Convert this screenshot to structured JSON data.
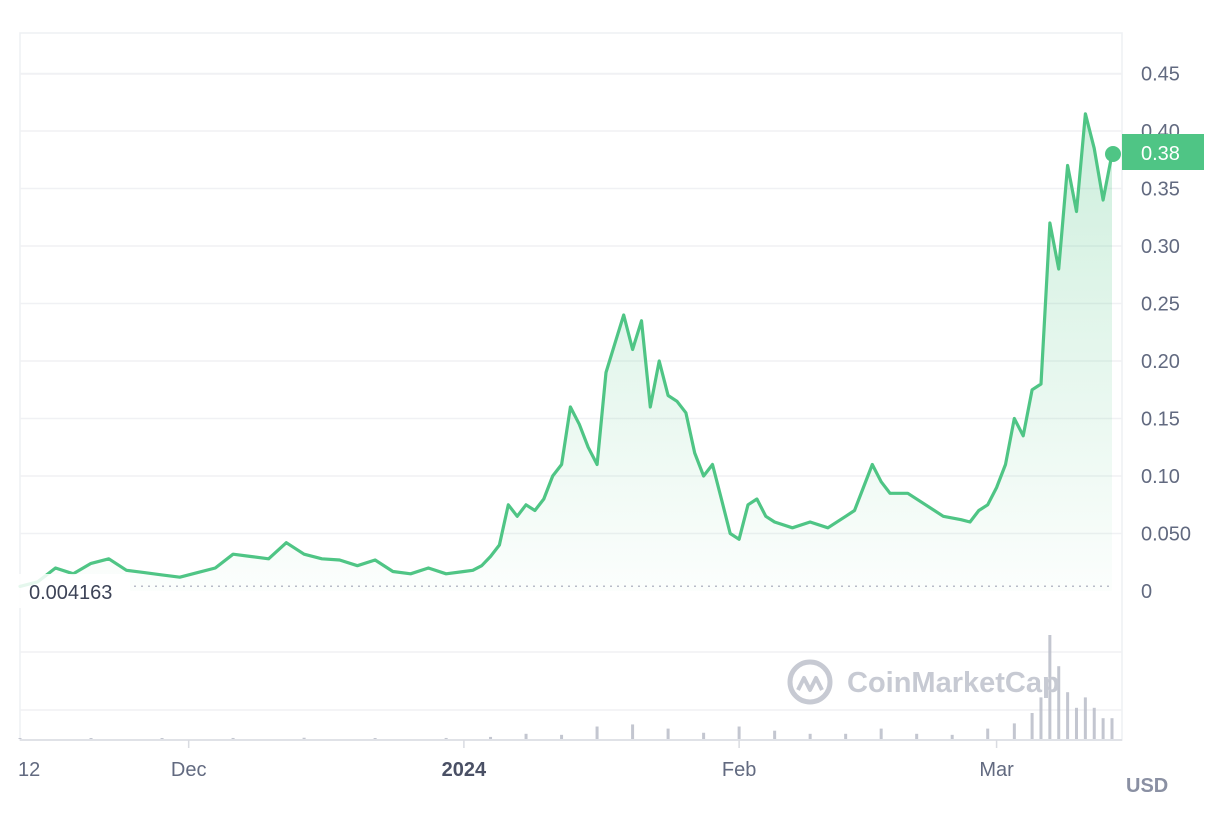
{
  "chart_data": {
    "type": "area",
    "currency": "USD",
    "y_ticks": [
      "0.45",
      "0.40",
      "0.35",
      "0.30",
      "0.25",
      "0.20",
      "0.15",
      "0.10",
      "0.050",
      "0"
    ],
    "y_tick_values": [
      0.45,
      0.4,
      0.35,
      0.3,
      0.25,
      0.2,
      0.15,
      0.1,
      0.05,
      0
    ],
    "ylim": [
      0,
      0.45
    ],
    "x_ticks": [
      {
        "label": "12",
        "date": "2023-11-12",
        "bold": false
      },
      {
        "label": "Dec",
        "date": "2023-12-01",
        "bold": false
      },
      {
        "label": "2024",
        "date": "2024-01-01",
        "bold": true
      },
      {
        "label": "Feb",
        "date": "2024-02-01",
        "bold": false
      },
      {
        "label": "Mar",
        "date": "2024-03-01",
        "bold": false
      }
    ],
    "xlim": [
      "2023-11-12",
      "2024-03-14"
    ],
    "base_price_label": "0.004163",
    "base_price": 0.004163,
    "current_price_label": "0.38",
    "current_price": 0.38,
    "line_color": "#4fc585",
    "volume_color": "#b8bcc8",
    "watermark": "CoinMarketCap",
    "series": [
      {
        "x": [
          "2023-11-12",
          "2023-11-14",
          "2023-11-16",
          "2023-11-18",
          "2023-11-20",
          "2023-11-22",
          "2023-11-24",
          "2023-11-26",
          "2023-11-28",
          "2023-11-30",
          "2023-12-02",
          "2023-12-04",
          "2023-12-06",
          "2023-12-08",
          "2023-12-10",
          "2023-12-12",
          "2023-12-14",
          "2023-12-16",
          "2023-12-18",
          "2023-12-20",
          "2023-12-22",
          "2023-12-24",
          "2023-12-26",
          "2023-12-28",
          "2023-12-30",
          "2024-01-01",
          "2024-01-02",
          "2024-01-03",
          "2024-01-04",
          "2024-01-05",
          "2024-01-06",
          "2024-01-07",
          "2024-01-08",
          "2024-01-09",
          "2024-01-10",
          "2024-01-11",
          "2024-01-12",
          "2024-01-13",
          "2024-01-14",
          "2024-01-15",
          "2024-01-16",
          "2024-01-17",
          "2024-01-18",
          "2024-01-19",
          "2024-01-20",
          "2024-01-21",
          "2024-01-22",
          "2024-01-23",
          "2024-01-24",
          "2024-01-25",
          "2024-01-26",
          "2024-01-27",
          "2024-01-28",
          "2024-01-29",
          "2024-01-30",
          "2024-01-31",
          "2024-02-01",
          "2024-02-02",
          "2024-02-03",
          "2024-02-04",
          "2024-02-05",
          "2024-02-07",
          "2024-02-09",
          "2024-02-11",
          "2024-02-13",
          "2024-02-14",
          "2024-02-15",
          "2024-02-16",
          "2024-02-17",
          "2024-02-18",
          "2024-02-20",
          "2024-02-22",
          "2024-02-24",
          "2024-02-26",
          "2024-02-27",
          "2024-02-28",
          "2024-02-29",
          "2024-03-01",
          "2024-03-02",
          "2024-03-03",
          "2024-03-04",
          "2024-03-05",
          "2024-03-06",
          "2024-03-07",
          "2024-03-08",
          "2024-03-09",
          "2024-03-10",
          "2024-03-11",
          "2024-03-12",
          "2024-03-13",
          "2024-03-14"
        ],
        "y": [
          0.004,
          0.008,
          0.02,
          0.015,
          0.024,
          0.028,
          0.018,
          0.016,
          0.014,
          0.012,
          0.016,
          0.02,
          0.032,
          0.03,
          0.028,
          0.042,
          0.032,
          0.028,
          0.027,
          0.022,
          0.027,
          0.017,
          0.015,
          0.02,
          0.015,
          0.017,
          0.018,
          0.022,
          0.03,
          0.04,
          0.075,
          0.065,
          0.075,
          0.07,
          0.08,
          0.1,
          0.11,
          0.16,
          0.145,
          0.125,
          0.11,
          0.19,
          0.215,
          0.24,
          0.21,
          0.235,
          0.16,
          0.2,
          0.17,
          0.165,
          0.155,
          0.12,
          0.1,
          0.11,
          0.08,
          0.05,
          0.045,
          0.075,
          0.08,
          0.065,
          0.06,
          0.055,
          0.06,
          0.055,
          0.065,
          0.07,
          0.09,
          0.11,
          0.095,
          0.085,
          0.085,
          0.075,
          0.065,
          0.062,
          0.06,
          0.07,
          0.075,
          0.09,
          0.11,
          0.15,
          0.135,
          0.175,
          0.18,
          0.32,
          0.28,
          0.37,
          0.33,
          0.415,
          0.385,
          0.34,
          0.38
        ]
      }
    ],
    "volume": {
      "x": [
        "2023-11-12",
        "2023-11-20",
        "2023-11-28",
        "2023-12-06",
        "2023-12-14",
        "2023-12-22",
        "2023-12-30",
        "2024-01-04",
        "2024-01-08",
        "2024-01-12",
        "2024-01-16",
        "2024-01-20",
        "2024-01-24",
        "2024-01-28",
        "2024-02-01",
        "2024-02-05",
        "2024-02-09",
        "2024-02-13",
        "2024-02-17",
        "2024-02-21",
        "2024-02-25",
        "2024-02-29",
        "2024-03-03",
        "2024-03-05",
        "2024-03-06",
        "2024-03-07",
        "2024-03-08",
        "2024-03-09",
        "2024-03-10",
        "2024-03-11",
        "2024-03-12",
        "2024-03-13",
        "2024-03-14"
      ],
      "values": [
        0.2,
        0.3,
        0.3,
        1.0,
        1.2,
        0.8,
        1.0,
        2,
        5,
        4,
        12,
        14,
        10,
        6,
        12,
        8,
        5,
        5,
        10,
        5,
        4,
        10,
        15,
        25,
        40,
        100,
        70,
        45,
        30,
        40,
        30,
        20,
        20
      ]
    }
  }
}
